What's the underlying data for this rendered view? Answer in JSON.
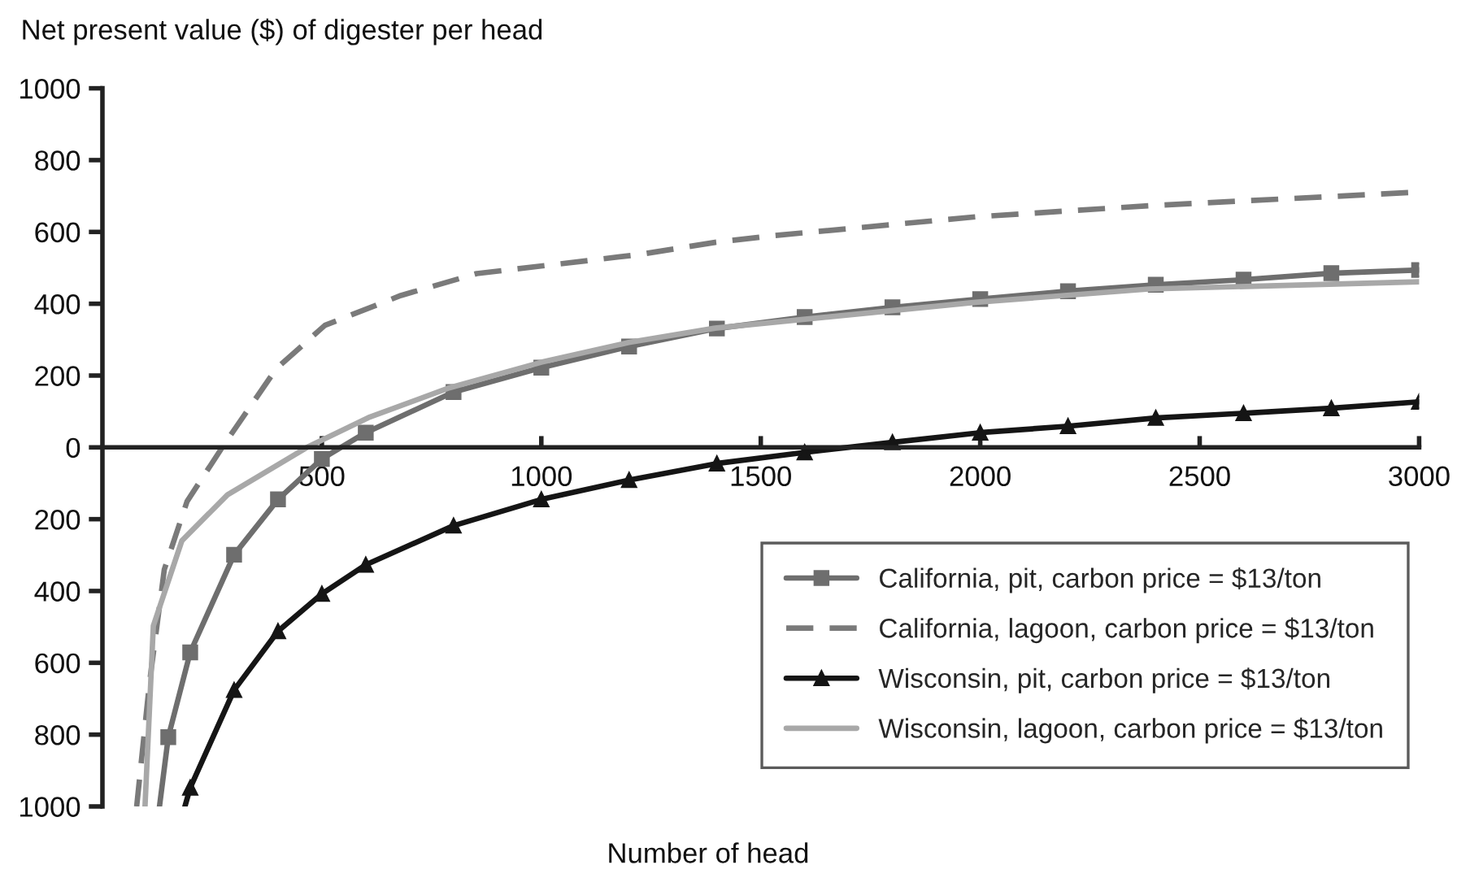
{
  "chart_data": {
    "type": "line",
    "ylabel": "Net present value ($) of digester per head",
    "xlabel": "Number of head",
    "xlim": [
      0,
      3000
    ],
    "xticks": [
      500,
      1000,
      1500,
      2000,
      2500,
      3000
    ],
    "ylim": [
      -1000,
      1000
    ],
    "yticks": [
      1000,
      800,
      600,
      400,
      200,
      0,
      {
        "value": -200,
        "label": "200"
      },
      {
        "value": -400,
        "label": "400"
      },
      {
        "value": -600,
        "label": "600"
      },
      {
        "value": -800,
        "label": "800"
      },
      {
        "value": -1000,
        "label": "1000"
      }
    ],
    "grid": false,
    "legend": "bottom right",
    "series": [
      {
        "name": "California, pit, carbon price = $13/ton",
        "color": "#6e6e6e",
        "marker": "square",
        "line_style": "solid",
        "x": [
          130,
          150,
          200,
          300,
          400,
          500,
          600,
          800,
          1000,
          1200,
          1400,
          1600,
          1800,
          2000,
          2200,
          2400,
          2600,
          2800,
          3000
        ],
        "values": [
          -1000,
          -807,
          -571,
          -299,
          -145,
          -32,
          41,
          154,
          222,
          281,
          331,
          363,
          390,
          413,
          435,
          453,
          467,
          485,
          494
        ]
      },
      {
        "name": "California, lagoon, carbon price = $13/ton",
        "color": "#7a7a7a",
        "marker": "none",
        "line_style": "dashed",
        "x": [
          78,
          107,
          141,
          193,
          273,
          396,
          507,
          680,
          853,
          1223,
          1396,
          1532,
          1989,
          2384,
          3000
        ],
        "values": [
          -1000,
          -658,
          -340,
          -150,
          0,
          219,
          340,
          423,
          484,
          537,
          571,
          590,
          642,
          673,
          711
        ]
      },
      {
        "name": "Wisconsin, pit, carbon price = $13/ton",
        "color": "#151515",
        "marker": "triangle",
        "line_style": "solid",
        "x": [
          188,
          200,
          300,
          400,
          500,
          600,
          800,
          1000,
          1200,
          1400,
          1600,
          1800,
          2000,
          2200,
          2400,
          2600,
          2800,
          3000
        ],
        "values": [
          -1000,
          -948,
          -676,
          -512,
          -408,
          -327,
          -218,
          -145,
          -91,
          -45,
          -14,
          14,
          41,
          59,
          82,
          95,
          109,
          127
        ]
      },
      {
        "name": "Wisconsin, lagoon, carbon price = $13/ton",
        "color": "#a8a8a8",
        "marker": "none",
        "line_style": "solid",
        "x": [
          97,
          116,
          181,
          285,
          466,
          606,
          791,
          1000,
          1199,
          1396,
          1989,
          2384,
          3000
        ],
        "values": [
          -1000,
          -497,
          -260,
          -132,
          0,
          83,
          166,
          237,
          292,
          332,
          404,
          441,
          461
        ]
      }
    ]
  }
}
